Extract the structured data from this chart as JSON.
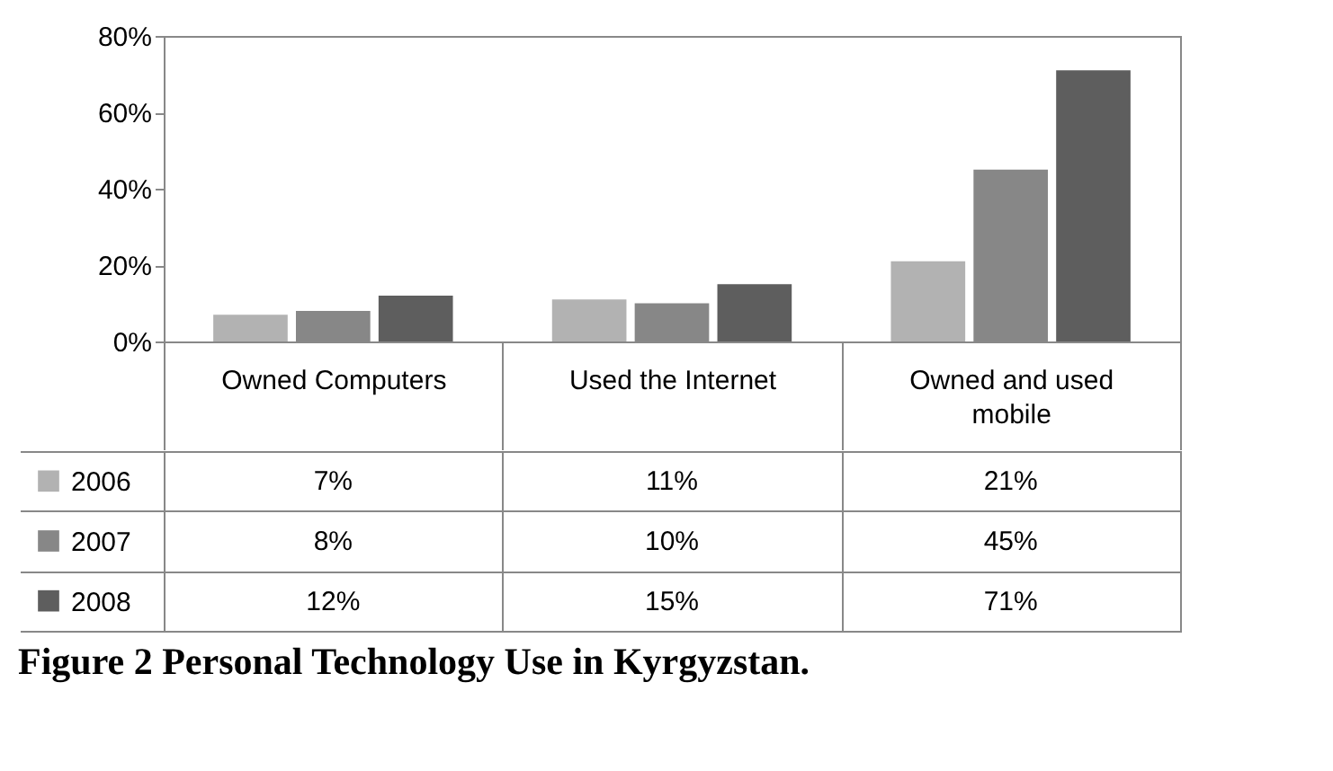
{
  "chart_data": {
    "type": "bar",
    "title": "Figure 2 Personal Technology Use in Kyrgyzstan.",
    "categories": [
      "Owned Computers",
      "Used the  Internet",
      "Owned and used mobile"
    ],
    "series": [
      {
        "name": "2006",
        "color": "#b2b2b2",
        "values": [
          7,
          11,
          21
        ],
        "value_labels": [
          "7%",
          "11%",
          "21%"
        ]
      },
      {
        "name": "2007",
        "color": "#878787",
        "values": [
          8,
          10,
          45
        ],
        "value_labels": [
          "8%",
          "10%",
          "45%"
        ]
      },
      {
        "name": "2008",
        "color": "#5e5e5e",
        "values": [
          12,
          15,
          71
        ],
        "value_labels": [
          "12%",
          "15%",
          "71%"
        ]
      }
    ],
    "ylim": [
      0,
      80
    ],
    "yticks": [
      {
        "value": 0,
        "label": "0%"
      },
      {
        "value": 20,
        "label": "20%"
      },
      {
        "value": 40,
        "label": "40%"
      },
      {
        "value": 60,
        "label": "60%"
      },
      {
        "value": 80,
        "label": "80%"
      }
    ],
    "legend": "bottom"
  }
}
